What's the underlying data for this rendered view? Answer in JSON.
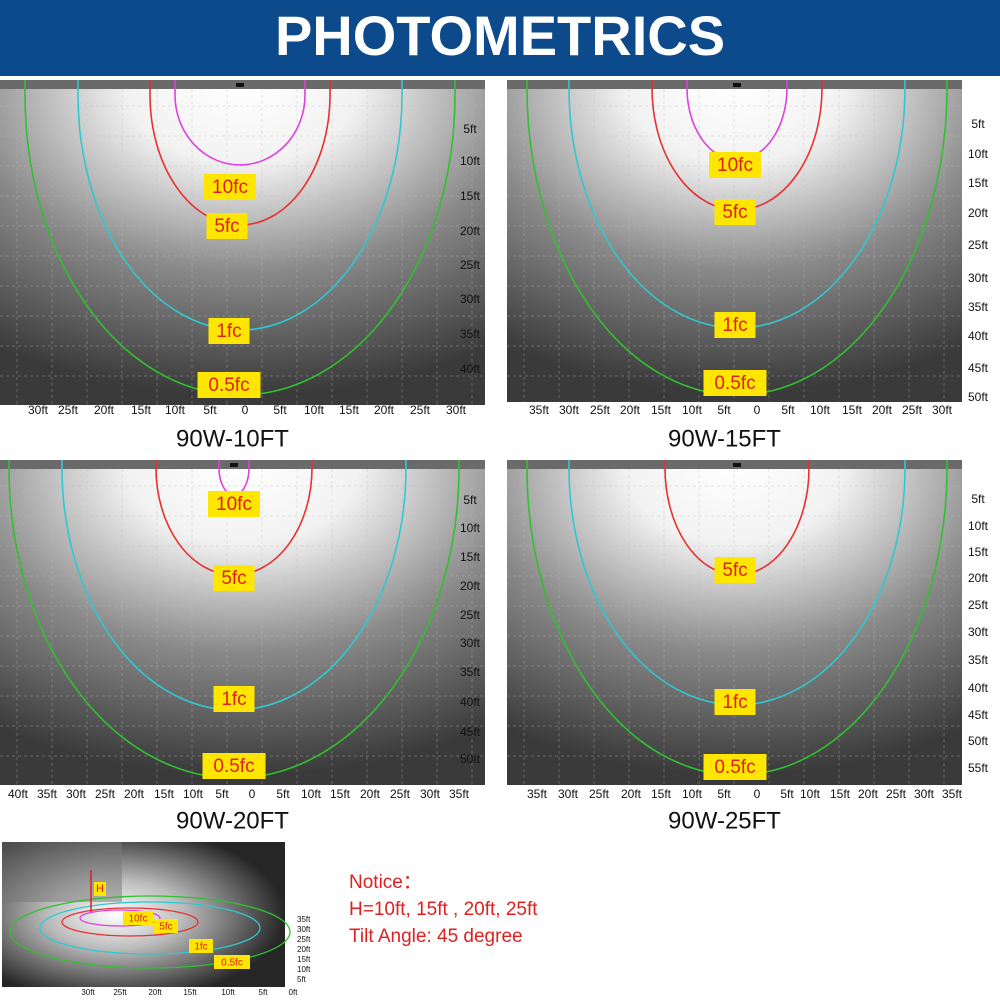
{
  "header": {
    "title": "PHOTOMETRICS"
  },
  "panels": [
    {
      "caption": "90W-10FT",
      "contours": [
        {
          "label": "10fc",
          "color": "#e040e0"
        },
        {
          "label": "5fc",
          "color": "#e83030"
        },
        {
          "label": "1fc",
          "color": "#30c8d0"
        },
        {
          "label": "0.5fc",
          "color": "#30c030"
        }
      ],
      "x_labels": [
        "30ft",
        "25ft",
        "20ft",
        "15ft",
        "10ft",
        "5ft",
        "0",
        "5ft",
        "10ft",
        "15ft",
        "20ft",
        "25ft",
        "30ft"
      ],
      "y_labels": [
        "5ft",
        "10ft",
        "15ft",
        "20ft",
        "25ft",
        "30ft",
        "35ft",
        "40ft"
      ]
    },
    {
      "caption": "90W-15FT",
      "contours": [
        {
          "label": "10fc",
          "color": "#e040e0"
        },
        {
          "label": "5fc",
          "color": "#e83030"
        },
        {
          "label": "1fc",
          "color": "#30c8d0"
        },
        {
          "label": "0.5fc",
          "color": "#30c030"
        }
      ],
      "x_labels": [
        "35ft",
        "30ft",
        "25ft",
        "20ft",
        "15ft",
        "10ft",
        "5ft",
        "0",
        "5ft",
        "10ft",
        "15ft",
        "20ft",
        "25ft",
        "30ft"
      ],
      "y_labels": [
        "5ft",
        "10ft",
        "15ft",
        "20ft",
        "25ft",
        "30ft",
        "35ft",
        "40ft",
        "45ft",
        "50ft"
      ]
    },
    {
      "caption": "90W-20FT",
      "contours": [
        {
          "label": "10fc",
          "color": "#e040e0"
        },
        {
          "label": "5fc",
          "color": "#e83030"
        },
        {
          "label": "1fc",
          "color": "#30c8d0"
        },
        {
          "label": "0.5fc",
          "color": "#30c030"
        }
      ],
      "x_labels": [
        "40ft",
        "35ft",
        "30ft",
        "25ft",
        "20ft",
        "15ft",
        "10ft",
        "5ft",
        "0",
        "5ft",
        "10ft",
        "15ft",
        "20ft",
        "25ft",
        "30ft",
        "35ft"
      ],
      "y_labels": [
        "5ft",
        "10ft",
        "15ft",
        "20ft",
        "25ft",
        "30ft",
        "35ft",
        "40ft",
        "45ft",
        "50ft"
      ]
    },
    {
      "caption": "90W-25FT",
      "contours": [
        {
          "label": "5fc",
          "color": "#e83030"
        },
        {
          "label": "1fc",
          "color": "#30c8d0"
        },
        {
          "label": "0.5fc",
          "color": "#30c030"
        }
      ],
      "x_labels": [
        "35ft",
        "30ft",
        "25ft",
        "20ft",
        "15ft",
        "10ft",
        "5ft",
        "0",
        "5ft",
        "10ft",
        "15ft",
        "20ft",
        "25ft",
        "30ft",
        "35ft"
      ],
      "y_labels": [
        "5ft",
        "10ft",
        "15ft",
        "20ft",
        "25ft",
        "30ft",
        "35ft",
        "40ft",
        "45ft",
        "50ft",
        "55ft"
      ]
    }
  ],
  "inset": {
    "height_label": "H",
    "contours": [
      {
        "label": "10fc",
        "color": "#e040e0"
      },
      {
        "label": "5fc",
        "color": "#e83030"
      },
      {
        "label": "1fc",
        "color": "#30c8d0"
      },
      {
        "label": "0.5fc",
        "color": "#30c030"
      }
    ],
    "x_labels": [
      "30ft",
      "25ft",
      "20ft",
      "15ft",
      "10ft",
      "5ft",
      "0ft"
    ],
    "y_labels": [
      "35ft",
      "30ft",
      "25ft",
      "20ft",
      "15ft",
      "10ft",
      "5ft"
    ]
  },
  "notice": {
    "title": "Notice：",
    "lines": [
      "H=10ft, 15ft , 20ft, 25ft",
      "Tilt Angle: 45 degree"
    ]
  }
}
